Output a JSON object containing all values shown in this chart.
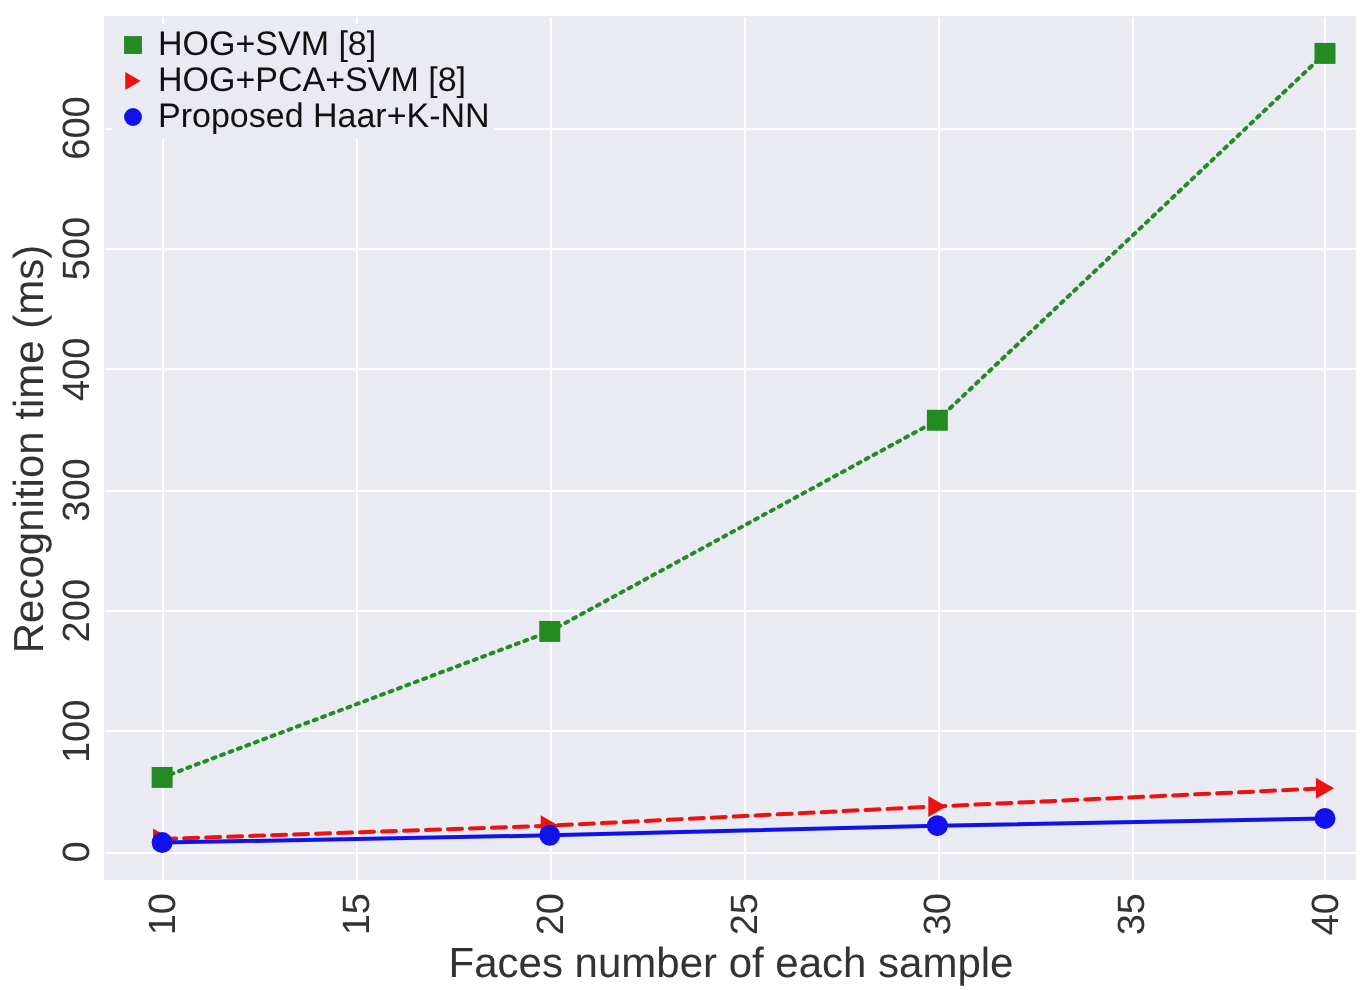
{
  "chart_data": {
    "type": "line",
    "xlabel": "Faces number of each sample",
    "ylabel": "Recognition time (ms)",
    "x": [
      10,
      20,
      30,
      40
    ],
    "series": [
      {
        "name": "HOG+SVM [8]",
        "color": "#228b22",
        "values": [
          61,
          182,
          357,
          661
        ],
        "marker": "square",
        "line_style": "dotted"
      },
      {
        "name": "HOG+PCA+SVM [8]",
        "color": "#ee1111",
        "values": [
          10,
          21,
          37,
          52
        ],
        "marker": "triangle",
        "line_style": "dashed"
      },
      {
        "name": "Proposed Haar+K-NN",
        "color": "#1111ee",
        "values": [
          7,
          13,
          21,
          27
        ],
        "marker": "circle",
        "line_style": "solid"
      }
    ],
    "xlim": [
      8.5,
      40.8
    ],
    "ylim": [
      -24,
      692
    ],
    "xticks": [
      10,
      15,
      20,
      25,
      30,
      35,
      40
    ],
    "yticks": [
      0,
      100,
      200,
      300,
      400,
      500,
      600
    ],
    "grid": true,
    "legend": "top left"
  }
}
